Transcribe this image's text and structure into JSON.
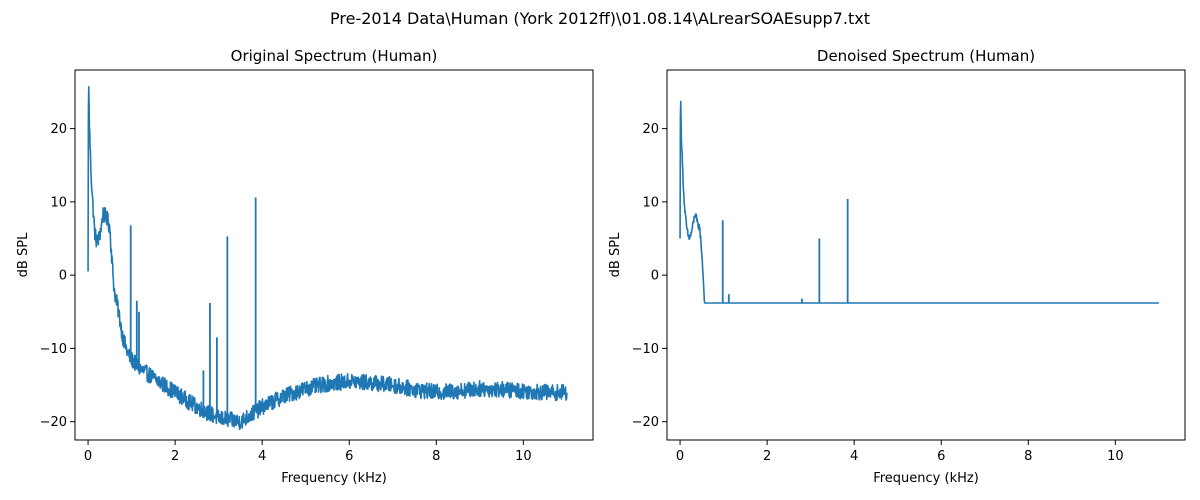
{
  "figure": {
    "suptitle": "Pre-2014 Data\\Human (York 2012ff)\\01.08.14\\ALrearSOAEsupp7.txt"
  },
  "chart_data": [
    {
      "type": "line",
      "title": "Original Spectrum (Human)",
      "xlabel": "Frequency (kHz)",
      "ylabel": "dB SPL",
      "xlim": [
        -0.3,
        11.6
      ],
      "ylim": [
        -22.5,
        28
      ],
      "xticks": [
        0,
        2,
        4,
        6,
        8,
        10
      ],
      "yticks": [
        -20,
        -10,
        0,
        10,
        20
      ],
      "grid": false,
      "series": [
        {
          "color": "#1f77b4",
          "noise_amplitude_db": 1.1,
          "x": [
            0.0,
            0.01,
            0.02,
            0.03,
            0.05,
            0.07,
            0.1,
            0.15,
            0.2,
            0.25,
            0.3,
            0.35,
            0.4,
            0.45,
            0.5,
            0.55,
            0.6,
            0.7,
            0.8,
            0.9,
            1.0,
            1.2,
            1.5,
            2.0,
            2.5,
            3.0,
            3.5,
            4.0,
            4.5,
            5.0,
            5.5,
            6.0,
            6.5,
            7.0,
            7.5,
            8.0,
            8.5,
            9.0,
            9.5,
            10.0,
            10.5,
            11.0
          ],
          "y": [
            0.5,
            28.0,
            24.0,
            21.0,
            17.0,
            14.0,
            10.5,
            6.0,
            4.5,
            5.0,
            6.5,
            8.5,
            8.0,
            7.5,
            6.5,
            2.0,
            -2.0,
            -5.0,
            -8.5,
            -10.5,
            -11.5,
            -12.8,
            -14.0,
            -16.0,
            -18.0,
            -19.5,
            -20.0,
            -18.0,
            -16.5,
            -15.5,
            -14.8,
            -14.5,
            -14.7,
            -15.0,
            -15.6,
            -16.0,
            -15.8,
            -15.5,
            -15.6,
            -15.8,
            -16.0,
            -16.0
          ]
        }
      ],
      "peaks": [
        {
          "x": 0.98,
          "y": 6.8
        },
        {
          "x": 1.12,
          "y": -3.5
        },
        {
          "x": 1.17,
          "y": -5.0
        },
        {
          "x": 2.65,
          "y": -13.0
        },
        {
          "x": 2.8,
          "y": -3.8
        },
        {
          "x": 2.96,
          "y": -8.5
        },
        {
          "x": 3.2,
          "y": 5.3
        },
        {
          "x": 3.85,
          "y": 10.6
        }
      ]
    },
    {
      "type": "line",
      "title": "Denoised Spectrum (Human)",
      "xlabel": "Frequency (kHz)",
      "ylabel": "dB SPL",
      "xlim": [
        -0.3,
        11.6
      ],
      "ylim": [
        -22.5,
        28
      ],
      "xticks": [
        0,
        2,
        4,
        6,
        8,
        10
      ],
      "yticks": [
        -20,
        -10,
        0,
        10,
        20
      ],
      "grid": false,
      "series": [
        {
          "color": "#1f77b4",
          "noise_amplitude_db": 0.5,
          "noise_until_khz": 0.55,
          "x": [
            0.0,
            0.01,
            0.02,
            0.03,
            0.05,
            0.07,
            0.1,
            0.15,
            0.2,
            0.25,
            0.3,
            0.35,
            0.4,
            0.45,
            0.5,
            0.53,
            0.56,
            0.6,
            11.0
          ],
          "y": [
            5.0,
            26.0,
            22.0,
            19.0,
            16.0,
            13.0,
            9.5,
            6.5,
            5.0,
            5.5,
            7.0,
            8.5,
            7.0,
            6.5,
            3.0,
            0.0,
            -3.8,
            -3.8,
            -3.8
          ]
        }
      ],
      "baseline": -3.8,
      "peaks": [
        {
          "x": 0.98,
          "y": 7.5
        },
        {
          "x": 1.12,
          "y": -2.6
        },
        {
          "x": 2.8,
          "y": -3.2
        },
        {
          "x": 3.2,
          "y": 5.0
        },
        {
          "x": 3.85,
          "y": 10.4
        }
      ]
    }
  ]
}
